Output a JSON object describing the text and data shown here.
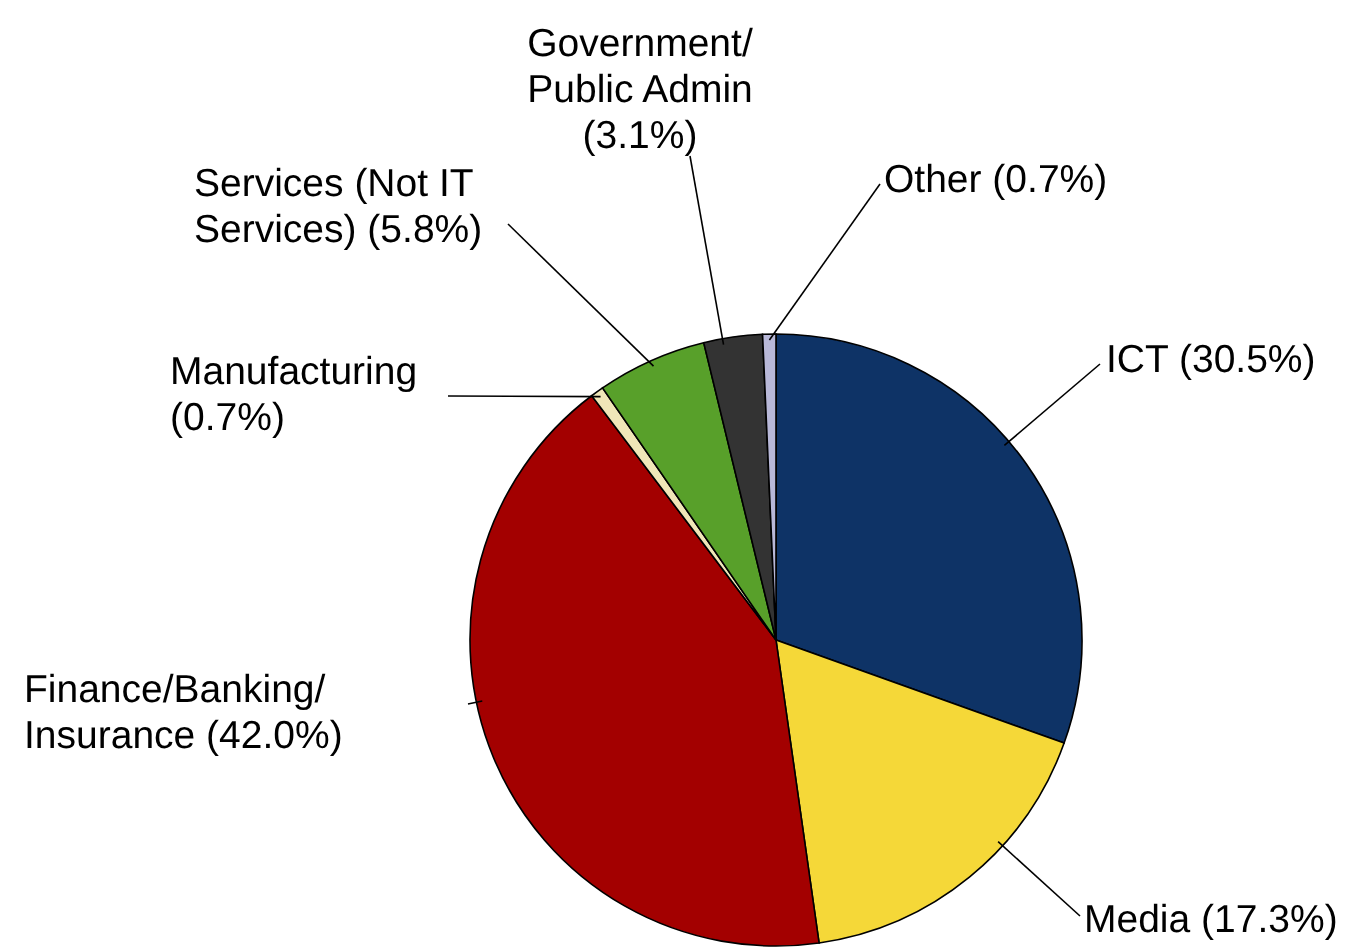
{
  "chart_data": {
    "type": "pie",
    "categories": [
      "ICT",
      "Media",
      "Finance/Banking/ Insurance",
      "Manufacturing",
      "Services (Not IT Services)",
      "Government/ Public Admin",
      "Other"
    ],
    "values": [
      30.5,
      17.3,
      42.0,
      0.7,
      5.8,
      3.1,
      0.7
    ],
    "colors": [
      "#0e3366",
      "#f5d838",
      "#a30000",
      "#f0e6b8",
      "#58a02a",
      "#333333",
      "#b8b8d8"
    ],
    "value_labels": [
      "(30.5%)",
      "(17.3%)",
      "(42.0%)",
      "(0.7%)",
      "(5.8%)",
      "(3.1%)",
      "(0.7%)"
    ]
  }
}
